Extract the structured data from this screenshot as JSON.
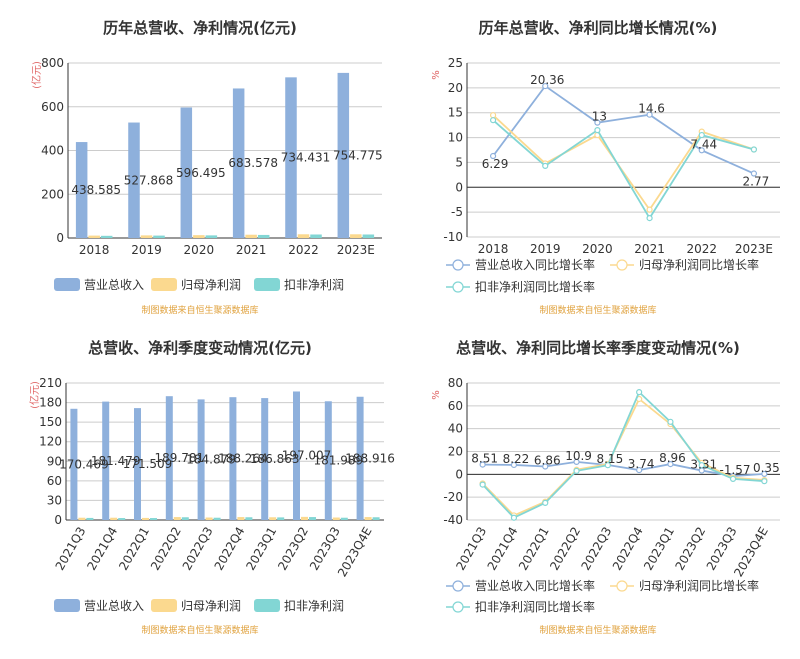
{
  "colors": {
    "revenue": "#8eb0dc",
    "net_profit": "#fbd98f",
    "deducted_profit": "#82d6d4",
    "axis": "#333333",
    "grid": "#cccccc",
    "unit": "#e06666",
    "source": "#e0a23e",
    "title": "#333333"
  },
  "source_note": "制图数据来自恒生聚源数据库",
  "chart_data": [
    {
      "id": "annual_amount",
      "type": "bar",
      "title": "历年总营收、净利情况(亿元)",
      "ylabel": "(亿元)",
      "ylim": [
        0,
        800
      ],
      "yticks": [
        0,
        200,
        400,
        600,
        800
      ],
      "grid": true,
      "legend_position": "bottom",
      "categories": [
        "2018",
        "2019",
        "2020",
        "2021",
        "2022",
        "2023E"
      ],
      "series": [
        {
          "name": "营业总收入",
          "color_key": "revenue",
          "values": [
            438.585,
            527.868,
            596.495,
            683.578,
            734.431,
            754.775
          ],
          "labels": [
            "438.585",
            "527.868",
            "596.495",
            "683.578",
            "734.431",
            "754.775"
          ]
        },
        {
          "name": "归母净利润",
          "color_key": "net_profit",
          "values": [
            11,
            12,
            13,
            15,
            17,
            17
          ]
        },
        {
          "name": "扣非净利润",
          "color_key": "deducted_profit",
          "values": [
            10,
            11,
            12,
            14,
            16,
            16
          ]
        }
      ]
    },
    {
      "id": "annual_growth",
      "type": "line",
      "title": "历年总营收、净利同比增长情况(%)",
      "ylabel": "%",
      "ylim": [
        -10,
        25
      ],
      "yticks": [
        -10,
        -5,
        0,
        5,
        10,
        15,
        20,
        25
      ],
      "grid": true,
      "legend_position": "bottom",
      "categories": [
        "2018",
        "2019",
        "2020",
        "2021",
        "2022",
        "2023E"
      ],
      "series": [
        {
          "name": "营业总收入同比增长率",
          "color_key": "revenue",
          "values": [
            6.29,
            20.36,
            13,
            14.6,
            7.44,
            2.77
          ],
          "labels": [
            "6.29",
            "20.36",
            "13",
            "14.6",
            "7.44",
            "2.77"
          ]
        },
        {
          "name": "归母净利润同比增长率",
          "color_key": "net_profit",
          "values": [
            14.5,
            4.8,
            10.5,
            -4.5,
            11.2,
            7.6
          ]
        },
        {
          "name": "扣非净利润同比增长率",
          "color_key": "deducted_profit",
          "values": [
            13.5,
            4.3,
            11.5,
            -6.2,
            10.5,
            7.6
          ]
        }
      ]
    },
    {
      "id": "quarterly_amount",
      "type": "bar",
      "title": "总营收、净利季度变动情况(亿元)",
      "ylabel": "(亿元)",
      "ylim": [
        0,
        210
      ],
      "yticks": [
        0,
        30,
        60,
        90,
        120,
        150,
        180,
        210
      ],
      "grid": true,
      "legend_position": "bottom",
      "categories": [
        "2021Q3",
        "2021Q4",
        "2022Q1",
        "2022Q2",
        "2022Q3",
        "2022Q4",
        "2023Q1",
        "2023Q2",
        "2023Q3",
        "2023Q4E"
      ],
      "series": [
        {
          "name": "营业总收入",
          "color_key": "revenue",
          "values": [
            170.469,
            181.479,
            171.509,
            189.781,
            184.879,
            188.264,
            186.863,
            197.007,
            181.989,
            188.916
          ],
          "labels": [
            "170.469",
            "181.479",
            "171.509",
            "189.781",
            "184.879",
            "188.264",
            "186.863",
            "197.007",
            "181.989",
            "188.916"
          ]
        },
        {
          "name": "归母净利润",
          "color_key": "net_profit",
          "values": [
            3.5,
            3.5,
            3.2,
            4.5,
            3.8,
            4.5,
            4.2,
            4.8,
            3.8,
            4.5
          ]
        },
        {
          "name": "扣非净利润",
          "color_key": "deducted_profit",
          "values": [
            3.2,
            3.0,
            3.0,
            4.2,
            3.5,
            4.2,
            4.0,
            4.5,
            3.5,
            4.2
          ]
        }
      ]
    },
    {
      "id": "quarterly_growth",
      "type": "line",
      "title": "总营收、净利同比增长率季度变动情况(%)",
      "ylabel": "%",
      "ylim": [
        -40,
        80
      ],
      "yticks": [
        -40,
        -20,
        0,
        20,
        40,
        60,
        80
      ],
      "grid": true,
      "legend_position": "bottom",
      "categories": [
        "2021Q3",
        "2021Q4",
        "2022Q1",
        "2022Q2",
        "2022Q3",
        "2022Q4",
        "2023Q1",
        "2023Q2",
        "2023Q3",
        "2023Q4E"
      ],
      "series": [
        {
          "name": "营业总收入同比增长率",
          "color_key": "revenue",
          "values": [
            8.51,
            8.22,
            6.86,
            10.9,
            8.15,
            3.74,
            8.96,
            3.31,
            -1.57,
            0.35
          ],
          "labels": [
            "8.51",
            "8.22",
            "6.86",
            "10.9",
            "8.15",
            "3.74",
            "8.96",
            "3.31",
            "-1.57",
            "0.35"
          ]
        },
        {
          "name": "归母净利润同比增长率",
          "color_key": "net_profit",
          "values": [
            -8,
            -36,
            -24,
            4,
            9,
            66,
            44,
            10,
            -3,
            -5
          ]
        },
        {
          "name": "扣非净利润同比增长率",
          "color_key": "deducted_profit",
          "values": [
            -9,
            -38,
            -25,
            3,
            8,
            72,
            46,
            8,
            -4,
            -6
          ]
        }
      ]
    }
  ]
}
